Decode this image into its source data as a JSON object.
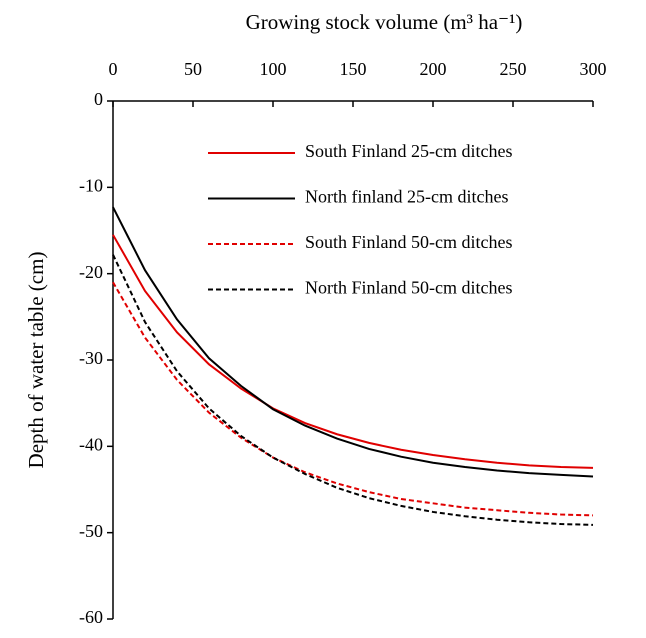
{
  "chart_data": {
    "type": "line",
    "x_label": "Growing stock volume (m³ ha⁻¹)",
    "y_label": "Depth of water table (cm)",
    "x": [
      0,
      20,
      40,
      60,
      80,
      100,
      120,
      140,
      160,
      180,
      200,
      220,
      240,
      260,
      280,
      300
    ],
    "series": [
      {
        "name": "South Finland 25-cm ditches",
        "color": "#e00000",
        "dash": "solid",
        "values": [
          -15.5,
          -22,
          -26.8,
          -30.5,
          -33.3,
          -35.6,
          -37.3,
          -38.6,
          -39.6,
          -40.4,
          -41.0,
          -41.5,
          -41.9,
          -42.2,
          -42.4,
          -42.5
        ]
      },
      {
        "name": "North finland 25-cm ditches",
        "color": "#000000",
        "dash": "solid",
        "values": [
          -12.3,
          -19.6,
          -25.3,
          -29.8,
          -33.0,
          -35.7,
          -37.6,
          -39.1,
          -40.3,
          -41.2,
          -41.9,
          -42.4,
          -42.8,
          -43.1,
          -43.3,
          -43.5
        ]
      },
      {
        "name": "South Finland 50-cm ditches",
        "color": "#e00000",
        "dash": "dashed",
        "values": [
          -21,
          -27.4,
          -32.3,
          -36.1,
          -39.0,
          -41.3,
          -43.0,
          -44.3,
          -45.3,
          -46.1,
          -46.6,
          -47.1,
          -47.4,
          -47.7,
          -47.9,
          -48.0
        ]
      },
      {
        "name": "North Finland 50-cm ditches",
        "color": "#000000",
        "dash": "dashed",
        "values": [
          -17.8,
          -25.6,
          -31.3,
          -35.6,
          -38.8,
          -41.3,
          -43.2,
          -44.8,
          -46.0,
          -46.9,
          -47.6,
          -48.1,
          -48.5,
          -48.8,
          -49.0,
          -49.1
        ]
      }
    ],
    "xlim": [
      0,
      300
    ],
    "xticks": [
      0,
      50,
      100,
      150,
      200,
      250,
      300
    ],
    "ylim": [
      -60,
      0
    ],
    "yticks": [
      0,
      -10,
      -20,
      -30,
      -40,
      -50,
      -60
    ],
    "x_axis_position": "top",
    "legend": "upper right",
    "grid": false
  }
}
